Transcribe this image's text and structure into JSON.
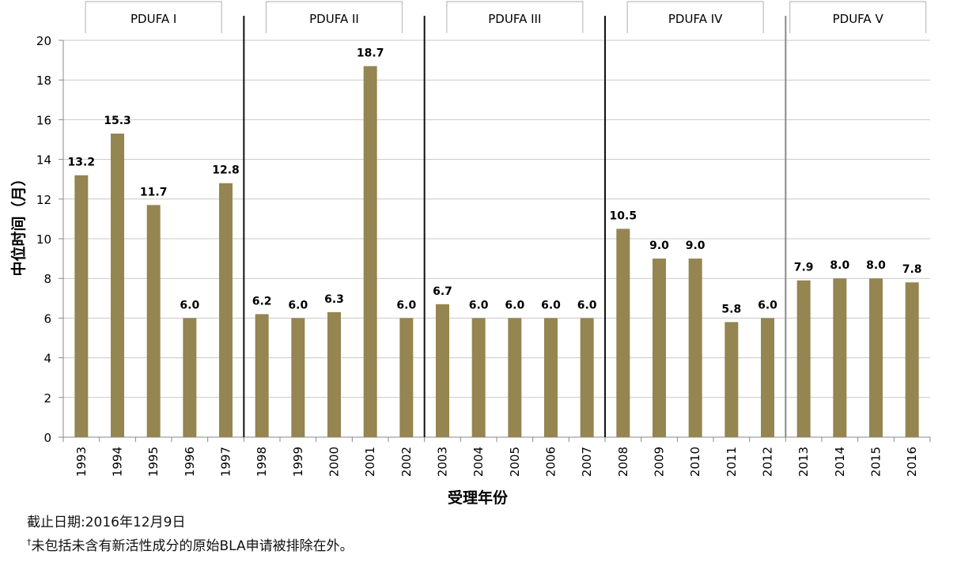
{
  "chart_data": {
    "type": "bar",
    "categories": [
      "1993",
      "1994",
      "1995",
      "1996",
      "1997",
      "1998",
      "1999",
      "2000",
      "2001",
      "2002",
      "2003",
      "2004",
      "2005",
      "2006",
      "2007",
      "2008",
      "2009",
      "2010",
      "2011",
      "2012",
      "2013",
      "2014",
      "2015",
      "2016"
    ],
    "values": [
      13.2,
      15.3,
      11.7,
      6.0,
      12.8,
      6.2,
      6.0,
      6.3,
      18.7,
      6.0,
      6.7,
      6.0,
      6.0,
      6.0,
      6.0,
      10.5,
      9.0,
      9.0,
      5.8,
      6.0,
      7.9,
      8.0,
      8.0,
      7.8
    ],
    "value_labels": [
      "13.2",
      "15.3",
      "11.7",
      "6.0",
      "12.8",
      "6.2",
      "6.0",
      "6.3",
      "18.7",
      "6.0",
      "6.7",
      "6.0",
      "6.0",
      "6.0",
      "6.0",
      "10.5",
      "9.0",
      "9.0",
      "5.8",
      "6.0",
      "7.9",
      "8.0",
      "8.0",
      "7.8"
    ],
    "ylabel": "中位时间（月）",
    "xlabel": "受理年份",
    "ylim": [
      0,
      20
    ],
    "yticks": [
      0,
      2,
      4,
      6,
      8,
      10,
      12,
      14,
      16,
      18,
      20
    ],
    "grid": true,
    "bar_color": "#948551",
    "periods": [
      {
        "label": "PDUFA I",
        "first": 0,
        "last": 4
      },
      {
        "label": "PDUFA II",
        "first": 5,
        "last": 9
      },
      {
        "label": "PDUFA III",
        "first": 10,
        "last": 14
      },
      {
        "label": "PDUFA IV",
        "first": 15,
        "last": 19
      },
      {
        "label": "PDUFA V",
        "first": 20,
        "last": 23
      }
    ]
  },
  "footnotes": {
    "cutoff": "截止日期:2016年12月9日",
    "dagger": "†",
    "note": "未包括未含有新活性成分的原始BLA申请被排除在外。"
  }
}
